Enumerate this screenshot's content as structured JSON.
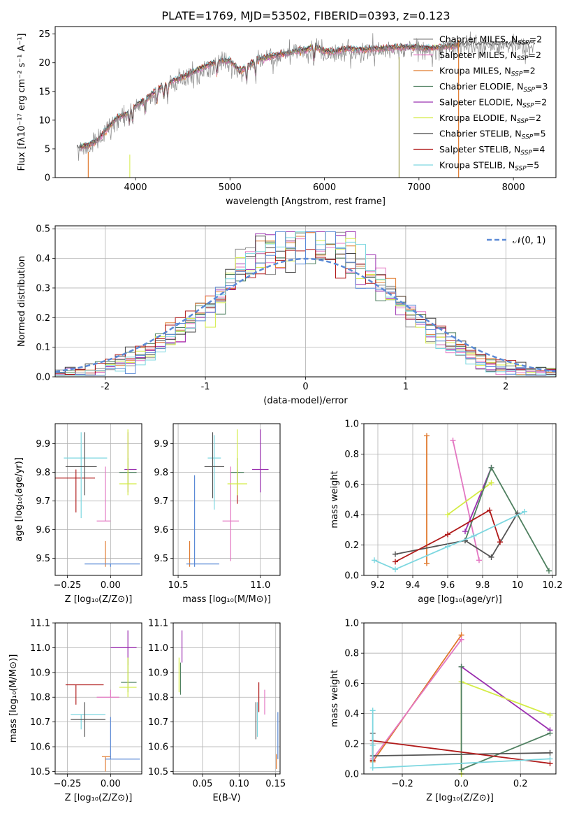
{
  "title": "PLATE=1769, MJD=53502, FIBERID=0393, z=0.123",
  "chart_data": [
    {
      "id": "spectrum",
      "type": "line",
      "xlabel": "wavelength [Angstrom, rest frame]",
      "ylabel": "Flux [fλ10⁻¹⁷ erg cm⁻² s⁻¹ A⁻¹]",
      "xlim": [
        3150,
        8450
      ],
      "ylim": [
        0,
        26.3
      ],
      "xticks": [
        4000,
        5000,
        6000,
        7000,
        8000
      ],
      "yticks": [
        0,
        5,
        10,
        15,
        20,
        25
      ],
      "legend_position": "top-right",
      "series": [
        {
          "name": "Chabrier MILES, N_SSP=2",
          "color": "#8c8c8c"
        },
        {
          "name": "Salpeter MILES, N_SSP=2",
          "color": "#e377c2"
        },
        {
          "name": "Kroupa MILES, N_SSP=2",
          "color": "#e07a2f"
        },
        {
          "name": "Chabrier ELODIE, N_SSP=3",
          "color": "#4f8060"
        },
        {
          "name": "Salpeter ELODIE, N_SSP=2",
          "color": "#9b30b0"
        },
        {
          "name": "Kroupa ELODIE, N_SSP=2",
          "color": "#d4ec46"
        },
        {
          "name": "Chabrier STELIB, N_SSP=5",
          "color": "#444444"
        },
        {
          "name": "Salpeter STELIB, N_SSP=4",
          "color": "#b01a1a"
        },
        {
          "name": "Kroupa STELIB, N_SSP=5",
          "color": "#7dd7e0"
        }
      ],
      "continuum": {
        "x": [
          3400,
          3500,
          3600,
          3700,
          3800,
          3900,
          4000,
          4100,
          4200,
          4300,
          4400,
          4500,
          4600,
          4700,
          4800,
          4900,
          5000,
          5100,
          5200,
          5300,
          5400,
          5500,
          5600,
          5700,
          5800,
          5900,
          6000,
          6100,
          6200,
          6300,
          6400,
          6500,
          6600,
          6700,
          6800,
          6900,
          7000,
          7100,
          7200,
          7300,
          7400,
          7600,
          7800,
          8000,
          8200
        ],
        "y": [
          5.3,
          5.5,
          6.5,
          8.5,
          10.3,
          11,
          12.5,
          13.5,
          14.8,
          16,
          16.8,
          17.5,
          18.3,
          19,
          19.8,
          20.3,
          20.3,
          18.5,
          19.5,
          20.5,
          21,
          21.3,
          21.6,
          22,
          22.2,
          22.8,
          22,
          21.8,
          22.4,
          22.3,
          22.2,
          22.4,
          22.4,
          22.6,
          22.6,
          22.7,
          22.6,
          22.5,
          22.6,
          22.8,
          23,
          23.2,
          23.2,
          23.2,
          23.3
        ]
      }
    },
    {
      "id": "residuals",
      "type": "line",
      "xlabel": "(data-model)/error",
      "ylabel": "Normed distribution",
      "xlim": [
        -2.5,
        2.5
      ],
      "ylim": [
        0,
        0.51
      ],
      "xticks": [
        -2,
        -1,
        0,
        1,
        2
      ],
      "yticks": [
        0.0,
        0.1,
        0.2,
        0.3,
        0.4,
        0.5
      ],
      "legend_position": "top-right",
      "gaussian_label": "𝒩(0, 1)",
      "gaussian_color": "#5b8ad6"
    },
    {
      "id": "age-vs-Z",
      "type": "scatter",
      "xlabel": "Z [log₁₀(Z/Z⊙)]",
      "ylabel": "age  [log₁₀(age/yr)]",
      "xlim": [
        -0.32,
        0.18
      ],
      "ylim": [
        9.44,
        9.97
      ],
      "xticks": [
        -0.25,
        0.0
      ],
      "xticklabels": [
        "−0.25",
        "0.00"
      ],
      "yticks": [
        9.5,
        9.6,
        9.7,
        9.8,
        9.9
      ],
      "points": [
        {
          "x": -0.03,
          "y": 9.48,
          "xe": [
            -0.03,
            -0.03
          ],
          "ye": [
            9.47,
            9.56
          ],
          "color": "#e07a2f"
        },
        {
          "x": 0.0,
          "y": 9.48,
          "xe": [
            -0.15,
            0.17
          ],
          "ye": [
            9.47,
            9.48
          ],
          "color": "#5b8ad6"
        },
        {
          "x": -0.03,
          "y": 9.63,
          "xe": [
            -0.08,
            0.0
          ],
          "ye": [
            9.63,
            9.82
          ],
          "color": "#e377c2"
        },
        {
          "x": -0.2,
          "y": 9.78,
          "xe": [
            -0.32,
            -0.09
          ],
          "ye": [
            9.66,
            9.81
          ],
          "color": "#b01a1a"
        },
        {
          "x": -0.17,
          "y": 9.85,
          "xe": [
            -0.27,
            -0.02
          ],
          "ye": [
            9.64,
            9.94
          ],
          "color": "#7dd7e0"
        },
        {
          "x": -0.15,
          "y": 9.82,
          "xe": [
            -0.26,
            -0.08
          ],
          "ye": [
            9.72,
            9.94
          ],
          "color": "#555555"
        },
        {
          "x": 0.1,
          "y": 9.81,
          "xe": [
            0.08,
            0.15
          ],
          "ye": [
            9.73,
            9.94
          ],
          "color": "#9b30b0"
        },
        {
          "x": 0.1,
          "y": 9.8,
          "xe": [
            0.05,
            0.15
          ],
          "ye": [
            9.76,
            9.85
          ],
          "color": "#4f8060"
        },
        {
          "x": 0.1,
          "y": 9.76,
          "xe": [
            0.05,
            0.15
          ],
          "ye": [
            9.72,
            9.95
          ],
          "color": "#d4ec46"
        }
      ]
    },
    {
      "id": "age-vs-mass",
      "type": "scatter",
      "xlabel": "mass [log₁₀(M/M⊙)]",
      "ylabel": "",
      "xlim": [
        10.47,
        11.12
      ],
      "ylim": [
        9.44,
        9.97
      ],
      "xticks": [
        10.5,
        11.0
      ],
      "xticklabels": [
        "10.5",
        "11.0"
      ],
      "yticks": [
        9.5,
        9.6,
        9.7,
        9.8,
        9.9
      ],
      "points": [
        {
          "x": 10.57,
          "y": 9.48,
          "xe": [
            10.57,
            10.57
          ],
          "ye": [
            9.47,
            9.56
          ],
          "color": "#e07a2f"
        },
        {
          "x": 10.6,
          "y": 9.48,
          "xe": [
            10.55,
            10.75
          ],
          "ye": [
            9.47,
            9.79
          ],
          "color": "#5b8ad6"
        },
        {
          "x": 10.82,
          "y": 9.63,
          "xe": [
            10.77,
            10.87
          ],
          "ye": [
            9.49,
            9.82
          ],
          "color": "#e377c2"
        },
        {
          "x": 10.86,
          "y": 9.78,
          "xe": [
            10.86,
            10.86
          ],
          "ye": [
            9.69,
            9.81
          ],
          "color": "#b01a1a"
        },
        {
          "x": 10.72,
          "y": 9.85,
          "xe": [
            10.68,
            10.76
          ],
          "ye": [
            9.67,
            9.93
          ],
          "color": "#7dd7e0"
        },
        {
          "x": 10.71,
          "y": 9.82,
          "xe": [
            10.66,
            10.78
          ],
          "ye": [
            9.71,
            9.94
          ],
          "color": "#555555"
        },
        {
          "x": 11.0,
          "y": 9.81,
          "xe": [
            10.95,
            11.05
          ],
          "ye": [
            9.73,
            9.95
          ],
          "color": "#9b30b0"
        },
        {
          "x": 10.86,
          "y": 9.8,
          "xe": [
            10.82,
            10.9
          ],
          "ye": [
            9.76,
            9.85
          ],
          "color": "#4f8060"
        },
        {
          "x": 10.86,
          "y": 9.76,
          "xe": [
            10.8,
            10.92
          ],
          "ye": [
            9.72,
            9.95
          ],
          "color": "#d4ec46"
        }
      ]
    },
    {
      "id": "mass-weight-vs-age",
      "type": "line",
      "xlabel": "age  [log₁₀(age/yr)]",
      "ylabel": "mass weight",
      "xlim": [
        9.12,
        10.22
      ],
      "ylim": [
        0.0,
        1.0
      ],
      "xticks": [
        9.2,
        9.4,
        9.6,
        9.8,
        10.0,
        10.2
      ],
      "yticks": [
        0.0,
        0.2,
        0.4,
        0.6,
        0.8,
        1.0
      ],
      "series": [
        {
          "name": "Kroupa MILES",
          "color": "#e07a2f",
          "x": [
            9.48,
            9.48
          ],
          "y": [
            0.92,
            0.08
          ]
        },
        {
          "name": "Salpeter MILES",
          "color": "#e377c2",
          "x": [
            9.63,
            9.78
          ],
          "y": [
            0.89,
            0.1
          ]
        },
        {
          "name": "Salpeter ELODIE",
          "color": "#9b30b0",
          "x": [
            9.7,
            9.85
          ],
          "y": [
            0.29,
            0.71
          ]
        },
        {
          "name": "Kroupa ELODIE",
          "color": "#d4ec46",
          "x": [
            9.6,
            9.85
          ],
          "y": [
            0.4,
            0.61
          ]
        },
        {
          "name": "Chabrier ELODIE",
          "color": "#4f8060",
          "x": [
            9.7,
            9.85,
            10.18
          ],
          "y": [
            0.23,
            0.71,
            0.03
          ]
        },
        {
          "name": "Chabrier STELIB",
          "color": "#555555",
          "x": [
            9.3,
            9.7,
            9.85,
            10.0
          ],
          "y": [
            0.14,
            0.23,
            0.12,
            0.41
          ]
        },
        {
          "name": "Salpeter STELIB",
          "color": "#b01a1a",
          "x": [
            9.3,
            9.6,
            9.84,
            9.9
          ],
          "y": [
            0.09,
            0.27,
            0.43,
            0.22
          ]
        },
        {
          "name": "Kroupa STELIB",
          "color": "#7dd7e0",
          "x": [
            9.18,
            9.3,
            9.6,
            9.75,
            10.04
          ],
          "y": [
            0.1,
            0.04,
            0.19,
            0.26,
            0.42
          ]
        }
      ]
    },
    {
      "id": "mass-vs-Z",
      "type": "scatter",
      "xlabel": "Z [log₁₀(Z/Z⊙)]",
      "ylabel": "mass [log₁₀(M/M⊙)]",
      "xlim": [
        -0.32,
        0.18
      ],
      "ylim": [
        10.49,
        11.1
      ],
      "xticks": [
        -0.25,
        0.0
      ],
      "xticklabels": [
        "−0.25",
        "0.00"
      ],
      "yticks": [
        10.5,
        10.6,
        10.7,
        10.8,
        10.9,
        11.0,
        11.1
      ],
      "points": [
        {
          "x": -0.03,
          "y": 10.56,
          "xe": [
            -0.05,
            0.0
          ],
          "ye": [
            10.5,
            10.56
          ],
          "color": "#e07a2f"
        },
        {
          "x": 0.0,
          "y": 10.55,
          "xe": [
            -0.03,
            0.17
          ],
          "ye": [
            10.55,
            10.72
          ],
          "color": "#5b8ad6"
        },
        {
          "x": 0.0,
          "y": 10.8,
          "xe": [
            -0.08,
            0.05
          ],
          "ye": [
            10.8,
            10.83
          ],
          "color": "#e377c2"
        },
        {
          "x": -0.2,
          "y": 10.85,
          "xe": [
            -0.26,
            -0.04
          ],
          "ye": [
            10.77,
            10.85
          ],
          "color": "#b01a1a"
        },
        {
          "x": -0.17,
          "y": 10.73,
          "xe": [
            -0.23,
            -0.03
          ],
          "ye": [
            10.67,
            10.73
          ],
          "color": "#7dd7e0"
        },
        {
          "x": -0.15,
          "y": 10.71,
          "xe": [
            -0.23,
            -0.03
          ],
          "ye": [
            10.64,
            10.78
          ],
          "color": "#555555"
        },
        {
          "x": 0.1,
          "y": 11.0,
          "xe": [
            0.0,
            0.15
          ],
          "ye": [
            10.93,
            11.07
          ],
          "color": "#9b30b0"
        },
        {
          "x": 0.1,
          "y": 10.86,
          "xe": [
            0.06,
            0.15
          ],
          "ye": [
            10.82,
            10.96
          ],
          "color": "#4f8060"
        },
        {
          "x": 0.1,
          "y": 10.84,
          "xe": [
            0.05,
            0.15
          ],
          "ye": [
            10.8,
            10.96
          ],
          "color": "#d4ec46"
        }
      ]
    },
    {
      "id": "mass-vs-ebv",
      "type": "scatter",
      "xlabel": "E(B-V)",
      "ylabel": "",
      "xlim": [
        0.01,
        0.156
      ],
      "ylim": [
        10.49,
        11.1
      ],
      "xticks": [
        0.05,
        0.1,
        0.15
      ],
      "xticklabels": [
        "0.05",
        "0.10",
        "0.15"
      ],
      "yticks": [
        10.5,
        10.6,
        10.7,
        10.8,
        10.9,
        11.0,
        11.1
      ],
      "points": [
        {
          "x": 0.151,
          "y": 10.55,
          "xe": [
            0.151,
            0.151
          ],
          "ye": [
            10.51,
            10.57
          ],
          "color": "#e07a2f"
        },
        {
          "x": 0.153,
          "y": 10.65,
          "xe": [
            0.153,
            0.153
          ],
          "ye": [
            10.55,
            10.74
          ],
          "color": "#5b8ad6"
        },
        {
          "x": 0.135,
          "y": 10.8,
          "xe": [
            0.135,
            0.135
          ],
          "ye": [
            10.73,
            10.83
          ],
          "color": "#e377c2"
        },
        {
          "x": 0.127,
          "y": 10.8,
          "xe": [
            0.127,
            0.127
          ],
          "ye": [
            10.74,
            10.86
          ],
          "color": "#b01a1a"
        },
        {
          "x": 0.125,
          "y": 10.7,
          "xe": [
            0.125,
            0.125
          ],
          "ye": [
            10.64,
            10.78
          ],
          "color": "#7dd7e0"
        },
        {
          "x": 0.123,
          "y": 10.7,
          "xe": [
            0.123,
            0.123
          ],
          "ye": [
            10.63,
            10.78
          ],
          "color": "#555555"
        },
        {
          "x": 0.022,
          "y": 11.0,
          "xe": [
            0.022,
            0.022
          ],
          "ye": [
            10.94,
            11.07
          ],
          "color": "#9b30b0"
        },
        {
          "x": 0.02,
          "y": 10.88,
          "xe": [
            0.02,
            0.02
          ],
          "ye": [
            10.81,
            10.94
          ],
          "color": "#4f8060"
        },
        {
          "x": 0.018,
          "y": 10.87,
          "xe": [
            0.018,
            0.018
          ],
          "ye": [
            10.82,
            10.96
          ],
          "color": "#d4ec46"
        }
      ]
    },
    {
      "id": "mass-weight-vs-Z",
      "type": "line",
      "xlabel": "Z [log₁₀(Z/Z⊙)]",
      "ylabel": "mass weight",
      "xlim": [
        -0.33,
        0.32
      ],
      "ylim": [
        0.0,
        1.0
      ],
      "xticks": [
        -0.2,
        0.0,
        0.2
      ],
      "xticklabels": [
        "−0.2",
        "0.0",
        "0.2"
      ],
      "yticks": [
        0.0,
        0.2,
        0.4,
        0.6,
        0.8,
        1.0
      ],
      "series": [
        {
          "name": "Kroupa MILES",
          "color": "#e07a2f",
          "x": [
            -0.3,
            0.0
          ],
          "y": [
            0.08,
            0.92
          ]
        },
        {
          "name": "Salpeter MILES",
          "color": "#e377c2",
          "x": [
            -0.3,
            0.0
          ],
          "y": [
            0.1,
            0.89
          ]
        },
        {
          "name": "Salpeter ELODIE",
          "color": "#9b30b0",
          "x": [
            0.0,
            0.3
          ],
          "y": [
            0.71,
            0.29
          ]
        },
        {
          "name": "Kroupa ELODIE",
          "color": "#d4ec46",
          "x": [
            0.0,
            0.0,
            0.3
          ],
          "y": [
            0.0,
            0.61,
            0.39
          ]
        },
        {
          "name": "Chabrier ELODIE",
          "color": "#4f8060",
          "x": [
            0.0,
            0.0,
            0.3
          ],
          "y": [
            0.71,
            0.03,
            0.27
          ]
        },
        {
          "name": "Chabrier STELIB",
          "color": "#555555",
          "x": [
            -0.3,
            -0.3,
            0.3
          ],
          "y": [
            0.27,
            0.12,
            0.14
          ]
        },
        {
          "name": "Salpeter STELIB",
          "color": "#b01a1a",
          "x": [
            -0.3,
            -0.3,
            0.3
          ],
          "y": [
            0.09,
            0.22,
            0.07
          ]
        },
        {
          "name": "Kroupa STELIB",
          "color": "#7dd7e0",
          "x": [
            -0.3,
            -0.3,
            -0.3,
            0.3
          ],
          "y": [
            0.42,
            0.19,
            0.04,
            0.1
          ]
        }
      ]
    }
  ]
}
